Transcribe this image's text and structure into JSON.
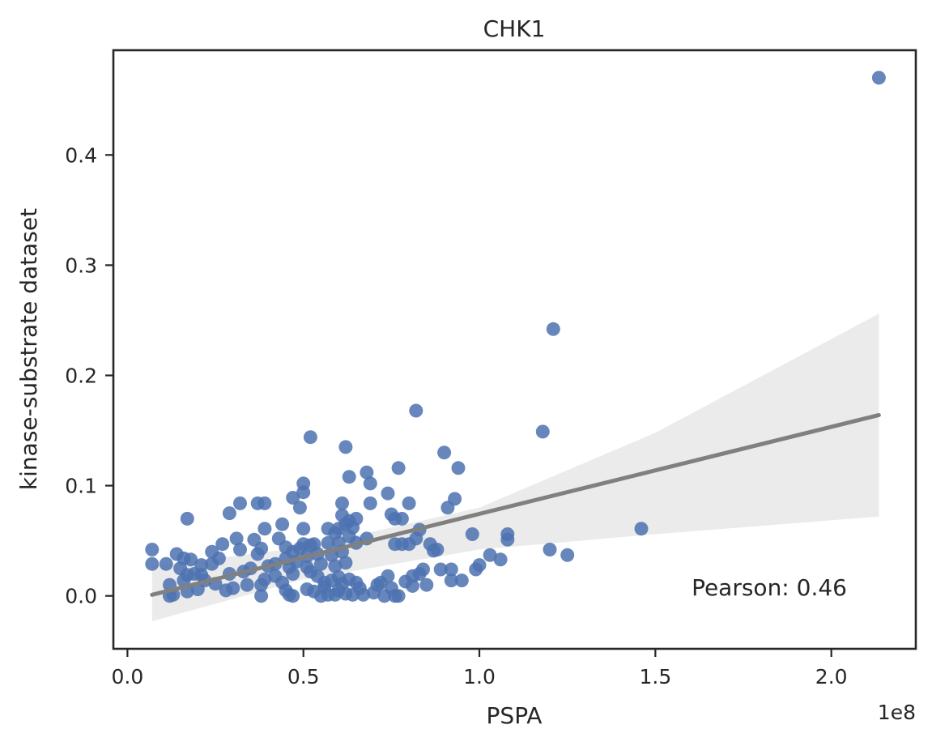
{
  "chart_data": {
    "type": "scatter",
    "title": "CHK1",
    "xlabel": "PSPA",
    "ylabel": "kinase-substrate dataset",
    "x_offset_label": "1e8",
    "xlim": [
      -0.04,
      2.24
    ],
    "ylim": [
      -0.048,
      0.495
    ],
    "x_ticks": [
      0.0,
      0.5,
      1.0,
      1.5,
      2.0
    ],
    "x_tick_labels": [
      "0.0",
      "0.5",
      "1.0",
      "1.5",
      "2.0"
    ],
    "y_ticks": [
      0.0,
      0.1,
      0.2,
      0.3,
      0.4
    ],
    "y_tick_labels": [
      "0.0",
      "0.1",
      "0.2",
      "0.3",
      "0.4"
    ],
    "grid": false,
    "annotation": "Pearson: 0.46",
    "point_color": "#4c72b0",
    "regression_color": "#808080",
    "ci_color": "#ebebeb",
    "regression": {
      "x": [
        0.07,
        2.135
      ],
      "y": [
        0.001,
        0.164
      ]
    },
    "ci_band": {
      "x": [
        0.07,
        0.5,
        1.0,
        1.5,
        2.135
      ],
      "upper": [
        0.027,
        0.044,
        0.08,
        0.148,
        0.256
      ],
      "lower": [
        -0.023,
        0.015,
        0.042,
        0.056,
        0.072
      ]
    },
    "points": [
      [
        0.07,
        0.042
      ],
      [
        0.07,
        0.029
      ],
      [
        0.11,
        0.029
      ],
      [
        0.12,
        0.01
      ],
      [
        0.12,
        0.0
      ],
      [
        0.13,
        0.001
      ],
      [
        0.14,
        0.038
      ],
      [
        0.15,
        0.025
      ],
      [
        0.16,
        0.034
      ],
      [
        0.16,
        0.014
      ],
      [
        0.17,
        0.07
      ],
      [
        0.17,
        0.019
      ],
      [
        0.17,
        0.004
      ],
      [
        0.18,
        0.033
      ],
      [
        0.19,
        0.02
      ],
      [
        0.2,
        0.006
      ],
      [
        0.21,
        0.028
      ],
      [
        0.21,
        0.019
      ],
      [
        0.22,
        0.014
      ],
      [
        0.24,
        0.04
      ],
      [
        0.24,
        0.029
      ],
      [
        0.25,
        0.011
      ],
      [
        0.26,
        0.034
      ],
      [
        0.27,
        0.047
      ],
      [
        0.28,
        0.005
      ],
      [
        0.29,
        0.075
      ],
      [
        0.29,
        0.02
      ],
      [
        0.3,
        0.007
      ],
      [
        0.31,
        0.052
      ],
      [
        0.32,
        0.084
      ],
      [
        0.32,
        0.042
      ],
      [
        0.33,
        0.022
      ],
      [
        0.34,
        0.01
      ],
      [
        0.35,
        0.025
      ],
      [
        0.36,
        0.051
      ],
      [
        0.37,
        0.084
      ],
      [
        0.37,
        0.038
      ],
      [
        0.38,
        0.043
      ],
      [
        0.38,
        0.01
      ],
      [
        0.38,
        0.0
      ],
      [
        0.39,
        0.084
      ],
      [
        0.39,
        0.061
      ],
      [
        0.39,
        0.015
      ],
      [
        0.4,
        0.027
      ],
      [
        0.42,
        0.029
      ],
      [
        0.42,
        0.018
      ],
      [
        0.43,
        0.052
      ],
      [
        0.44,
        0.065
      ],
      [
        0.44,
        0.012
      ],
      [
        0.45,
        0.044
      ],
      [
        0.45,
        0.034
      ],
      [
        0.45,
        0.005
      ],
      [
        0.46,
        0.026
      ],
      [
        0.46,
        0.001
      ],
      [
        0.47,
        0.089
      ],
      [
        0.47,
        0.04
      ],
      [
        0.47,
        0.02
      ],
      [
        0.47,
        0.0
      ],
      [
        0.48,
        0.031
      ],
      [
        0.49,
        0.08
      ],
      [
        0.49,
        0.043
      ],
      [
        0.5,
        0.102
      ],
      [
        0.5,
        0.094
      ],
      [
        0.5,
        0.061
      ],
      [
        0.5,
        0.047
      ],
      [
        0.51,
        0.036
      ],
      [
        0.51,
        0.026
      ],
      [
        0.51,
        0.006
      ],
      [
        0.52,
        0.144
      ],
      [
        0.52,
        0.046
      ],
      [
        0.52,
        0.022
      ],
      [
        0.53,
        0.004
      ],
      [
        0.53,
        0.047
      ],
      [
        0.54,
        0.038
      ],
      [
        0.54,
        0.018
      ],
      [
        0.55,
        0.0
      ],
      [
        0.55,
        0.029
      ],
      [
        0.56,
        0.012
      ],
      [
        0.56,
        0.008
      ],
      [
        0.57,
        0.061
      ],
      [
        0.57,
        0.048
      ],
      [
        0.57,
        0.001
      ],
      [
        0.58,
        0.037
      ],
      [
        0.58,
        0.014
      ],
      [
        0.59,
        0.057
      ],
      [
        0.59,
        0.027
      ],
      [
        0.59,
        0.001
      ],
      [
        0.6,
        0.061
      ],
      [
        0.6,
        0.048
      ],
      [
        0.6,
        0.017
      ],
      [
        0.6,
        0.005
      ],
      [
        0.61,
        0.084
      ],
      [
        0.61,
        0.073
      ],
      [
        0.61,
        0.04
      ],
      [
        0.61,
        0.011
      ],
      [
        0.62,
        0.135
      ],
      [
        0.62,
        0.065
      ],
      [
        0.62,
        0.03
      ],
      [
        0.62,
        0.002
      ],
      [
        0.63,
        0.108
      ],
      [
        0.63,
        0.068
      ],
      [
        0.63,
        0.054
      ],
      [
        0.63,
        0.015
      ],
      [
        0.64,
        0.062
      ],
      [
        0.64,
        0.001
      ],
      [
        0.65,
        0.07
      ],
      [
        0.65,
        0.048
      ],
      [
        0.65,
        0.012
      ],
      [
        0.66,
        0.007
      ],
      [
        0.67,
        0.001
      ],
      [
        0.68,
        0.112
      ],
      [
        0.68,
        0.052
      ],
      [
        0.69,
        0.102
      ],
      [
        0.69,
        0.084
      ],
      [
        0.7,
        0.003
      ],
      [
        0.71,
        0.01
      ],
      [
        0.72,
        0.012
      ],
      [
        0.73,
        0.0
      ],
      [
        0.74,
        0.093
      ],
      [
        0.74,
        0.018
      ],
      [
        0.75,
        0.074
      ],
      [
        0.75,
        0.007
      ],
      [
        0.76,
        0.07
      ],
      [
        0.76,
        0.047
      ],
      [
        0.76,
        0.0
      ],
      [
        0.77,
        0.116
      ],
      [
        0.77,
        0.0
      ],
      [
        0.78,
        0.07
      ],
      [
        0.78,
        0.047
      ],
      [
        0.79,
        0.013
      ],
      [
        0.8,
        0.084
      ],
      [
        0.8,
        0.047
      ],
      [
        0.81,
        0.018
      ],
      [
        0.81,
        0.009
      ],
      [
        0.82,
        0.168
      ],
      [
        0.82,
        0.052
      ],
      [
        0.83,
        0.06
      ],
      [
        0.83,
        0.02
      ],
      [
        0.84,
        0.024
      ],
      [
        0.85,
        0.01
      ],
      [
        0.86,
        0.047
      ],
      [
        0.87,
        0.041
      ],
      [
        0.88,
        0.042
      ],
      [
        0.89,
        0.024
      ],
      [
        0.9,
        0.13
      ],
      [
        0.91,
        0.08
      ],
      [
        0.92,
        0.014
      ],
      [
        0.92,
        0.024
      ],
      [
        0.93,
        0.088
      ],
      [
        0.94,
        0.116
      ],
      [
        0.95,
        0.014
      ],
      [
        0.98,
        0.056
      ],
      [
        0.99,
        0.024
      ],
      [
        1.0,
        0.028
      ],
      [
        1.03,
        0.037
      ],
      [
        1.06,
        0.033
      ],
      [
        1.08,
        0.056
      ],
      [
        1.08,
        0.051
      ],
      [
        1.18,
        0.149
      ],
      [
        1.2,
        0.042
      ],
      [
        1.21,
        0.242
      ],
      [
        1.25,
        0.037
      ],
      [
        1.46,
        0.061
      ],
      [
        2.135,
        0.47
      ]
    ]
  }
}
